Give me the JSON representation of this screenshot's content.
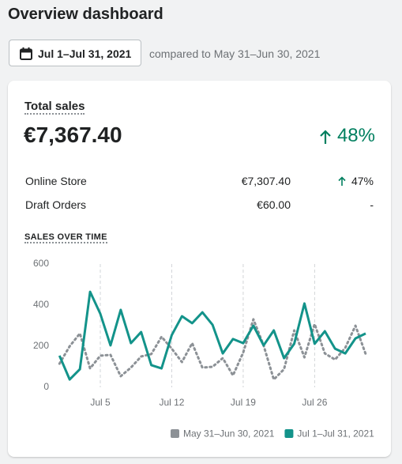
{
  "header": {
    "title": "Overview dashboard",
    "date_range": "Jul 1–Jul 31, 2021",
    "comparison": "compared to May 31–Jun 30, 2021"
  },
  "card": {
    "title": "Total sales",
    "total": "€7,367.40",
    "change": "48%",
    "rows": [
      [
        "Online Store",
        "€7,307.40",
        "47%"
      ],
      [
        "Draft Orders",
        "€60.00",
        "-"
      ]
    ]
  },
  "chart_data": {
    "type": "line",
    "title": "SALES OVER TIME",
    "x": [
      1,
      2,
      3,
      4,
      5,
      6,
      7,
      8,
      9,
      10,
      11,
      12,
      13,
      14,
      15,
      16,
      17,
      18,
      19,
      20,
      21,
      22,
      23,
      24,
      25,
      26,
      27,
      28,
      29,
      30,
      31
    ],
    "xlim": [
      1,
      31
    ],
    "xticks": [
      {
        "value": 5,
        "label": "Jul 5"
      },
      {
        "value": 12,
        "label": "Jul 12"
      },
      {
        "value": 19,
        "label": "Jul 19"
      },
      {
        "value": 26,
        "label": "Jul 26"
      }
    ],
    "ylim": [
      0,
      600
    ],
    "yticks": [
      0,
      200,
      400,
      600
    ],
    "grid": true,
    "series": [
      {
        "name": "May 31–Jun 30, 2021",
        "color": "#8c9196",
        "style": "dotted",
        "values": [
          115,
          200,
          262,
          92,
          154,
          158,
          54,
          96,
          150,
          162,
          246,
          188,
          123,
          215,
          96,
          100,
          142,
          58,
          169,
          331,
          204,
          38,
          88,
          277,
          146,
          308,
          165,
          135,
          192,
          300,
          162
        ]
      },
      {
        "name": "Jul 1–Jul 31, 2021",
        "color": "#13938a",
        "style": "solid",
        "values": [
          154,
          38,
          88,
          465,
          358,
          204,
          377,
          215,
          269,
          108,
          92,
          254,
          346,
          312,
          365,
          304,
          165,
          235,
          215,
          300,
          204,
          277,
          142,
          212,
          408,
          212,
          273,
          188,
          165,
          238,
          262
        ]
      }
    ]
  }
}
